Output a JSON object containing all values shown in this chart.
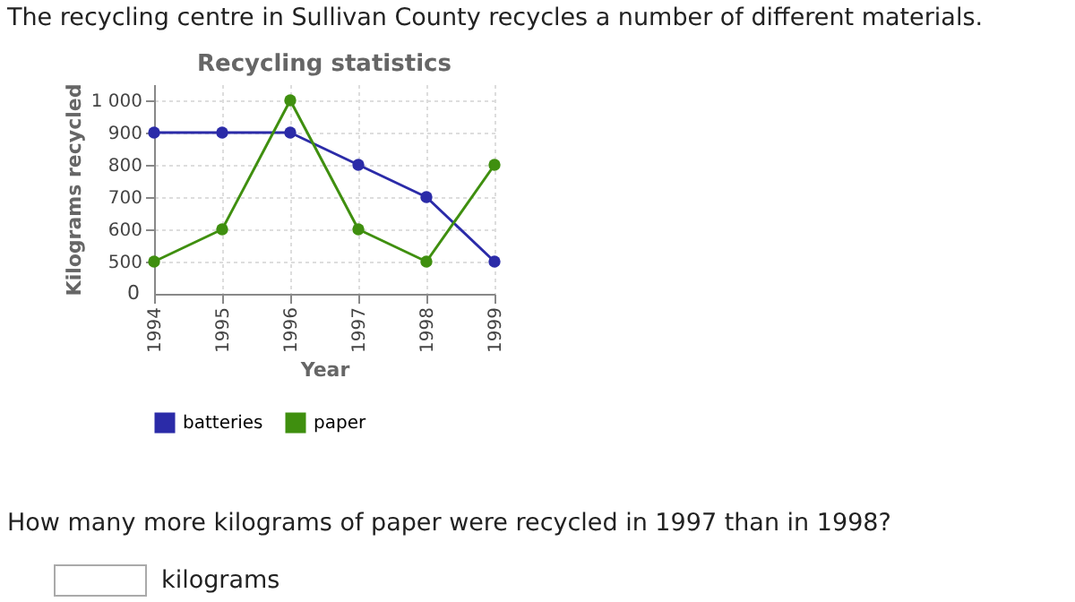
{
  "chart_data": {
    "type": "line",
    "title": "Recycling statistics",
    "xlabel": "Year",
    "ylabel": "Kilograms recycled",
    "categories": [
      "1994",
      "1995",
      "1996",
      "1997",
      "1998",
      "1999"
    ],
    "series": [
      {
        "name": "batteries",
        "color": "#2b2ba8",
        "values": [
          900,
          900,
          900,
          800,
          700,
          500
        ]
      },
      {
        "name": "paper",
        "color": "#3f8f0f",
        "values": [
          500,
          600,
          1000,
          600,
          500,
          800
        ]
      }
    ],
    "ylim": [
      400,
      1050
    ],
    "yticks": [
      500,
      600,
      700,
      800,
      900,
      {
        "value": 1000,
        "label": "1 000"
      }
    ],
    "grid": true,
    "legend": "bottom",
    "marker": "circle",
    "line_style": "solid",
    "annotations": [
      "The recycling centre in Sullivan County recycles a number of different materials.",
      "How many more kilograms of paper were recycled in 1997 than in 1998?",
      "kilograms",
      "0"
    ]
  }
}
